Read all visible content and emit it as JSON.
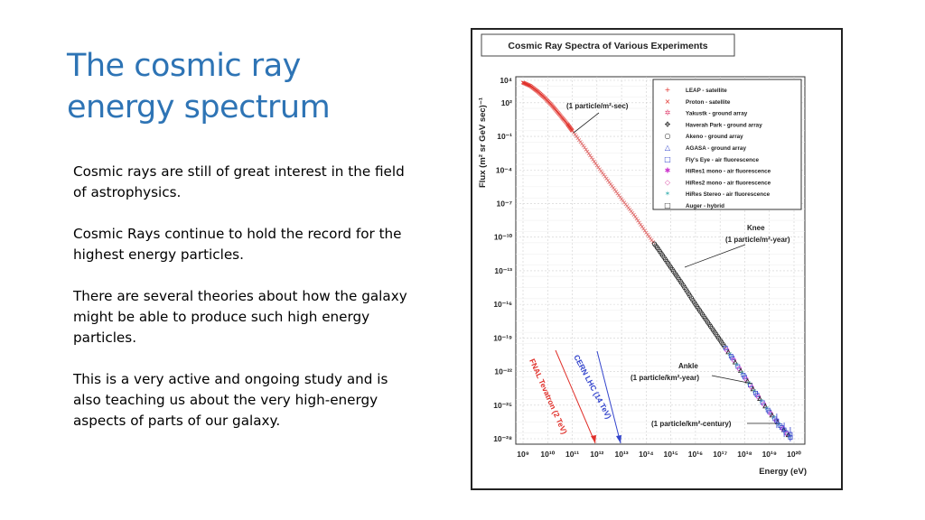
{
  "slide": {
    "title_line1": "The cosmic ray",
    "title_line2": "energy spectrum",
    "paragraphs": [
      "Cosmic rays are still of great interest in the field of astrophysics.",
      "Cosmic Rays continue to hold the record for the highest energy particles.",
      "There are several theories about how the galaxy might be able to produce such high energy particles.",
      "This is a very active and ongoing study and is also teaching us about the very high-energy aspects of parts of our galaxy."
    ]
  },
  "chart_data": {
    "type": "scatter",
    "title": "Cosmic Ray Spectra of Various Experiments",
    "xlabel": "Energy (eV)",
    "ylabel": "Flux (m² sr GeV sec)⁻¹",
    "xscale": "log",
    "yscale": "log",
    "xlim_exp": [
      9,
      20
    ],
    "ylim_exp": [
      -28,
      4
    ],
    "x_ticks": [
      {
        "exp": 9,
        "label": "10⁹"
      },
      {
        "exp": 10,
        "label": "10¹⁰"
      },
      {
        "exp": 11,
        "label": "10¹¹"
      },
      {
        "exp": 12,
        "label": "10¹²"
      },
      {
        "exp": 13,
        "label": "10¹³"
      },
      {
        "exp": 14,
        "label": "10¹⁴"
      },
      {
        "exp": 15,
        "label": "10¹⁵"
      },
      {
        "exp": 16,
        "label": "10¹⁶"
      },
      {
        "exp": 17,
        "label": "10¹⁷"
      },
      {
        "exp": 18,
        "label": "10¹⁸"
      },
      {
        "exp": 19,
        "label": "10¹⁹"
      },
      {
        "exp": 20,
        "label": "10²⁰"
      }
    ],
    "y_ticks": [
      {
        "exp": 4,
        "label": "10⁴"
      },
      {
        "exp": 2,
        "label": "10²"
      },
      {
        "exp": -1,
        "label": "10⁻¹"
      },
      {
        "exp": -4,
        "label": "10⁻⁴"
      },
      {
        "exp": -7,
        "label": "10⁻⁷"
      },
      {
        "exp": -10,
        "label": "10⁻¹⁰"
      },
      {
        "exp": -13,
        "label": "10⁻¹³"
      },
      {
        "exp": -16,
        "label": "10⁻¹⁶"
      },
      {
        "exp": -19,
        "label": "10⁻¹⁹"
      },
      {
        "exp": -22,
        "label": "10⁻²²"
      },
      {
        "exp": -25,
        "label": "10⁻²⁵"
      },
      {
        "exp": -28,
        "label": "10⁻²⁸"
      }
    ],
    "legend": [
      {
        "label": "LEAP - satellite",
        "marker": "+",
        "color": "#e0302a"
      },
      {
        "label": "Proton - satellite",
        "marker": "×",
        "color": "#e0302a"
      },
      {
        "label": "Yakustk - ground array",
        "marker": "✲",
        "color": "#e04070"
      },
      {
        "label": "Haverah Park - ground array",
        "marker": "✥",
        "color": "#333333"
      },
      {
        "label": "Akeno - ground array",
        "marker": "○",
        "color": "#333333"
      },
      {
        "label": "AGASA - ground array",
        "marker": "△",
        "color": "#3344cc"
      },
      {
        "label": "Fly's Eye - air fluorescence",
        "marker": "□",
        "color": "#3344cc"
      },
      {
        "label": "HiRes1 mono - air fluorescence",
        "marker": "✱",
        "color": "#cc33cc"
      },
      {
        "label": "HiRes2 mono - air fluorescence",
        "marker": "◇",
        "color": "#dd55aa"
      },
      {
        "label": "HiRes Stereo - air fluorescence",
        "marker": "✶",
        "color": "#55bbbb"
      },
      {
        "label": "Auger - hybrid",
        "marker": "□",
        "color": "#333333"
      }
    ],
    "spectrum": [
      {
        "log_e": 9.0,
        "log_flux": 3.8
      },
      {
        "log_e": 9.3,
        "log_flux": 3.5
      },
      {
        "log_e": 9.6,
        "log_flux": 3.0
      },
      {
        "log_e": 9.9,
        "log_flux": 2.4
      },
      {
        "log_e": 10.2,
        "log_flux": 1.7
      },
      {
        "log_e": 10.5,
        "log_flux": 0.9
      },
      {
        "log_e": 10.8,
        "log_flux": 0.1
      },
      {
        "log_e": 11.0,
        "log_flux": -0.5
      },
      {
        "log_e": 11.5,
        "log_flux": -2.0
      },
      {
        "log_e": 12.0,
        "log_flux": -3.6
      },
      {
        "log_e": 12.5,
        "log_flux": -5.1
      },
      {
        "log_e": 13.0,
        "log_flux": -6.6
      },
      {
        "log_e": 13.5,
        "log_flux": -8.0
      },
      {
        "log_e": 14.0,
        "log_flux": -9.6
      },
      {
        "log_e": 14.5,
        "log_flux": -11.1
      },
      {
        "log_e": 15.0,
        "log_flux": -12.7
      },
      {
        "log_e": 15.5,
        "log_flux": -14.3
      },
      {
        "log_e": 16.0,
        "log_flux": -16.0
      },
      {
        "log_e": 16.5,
        "log_flux": -17.6
      },
      {
        "log_e": 17.0,
        "log_flux": -19.2
      },
      {
        "log_e": 17.5,
        "log_flux": -20.8
      },
      {
        "log_e": 18.0,
        "log_flux": -22.5
      },
      {
        "log_e": 18.5,
        "log_flux": -24.1
      },
      {
        "log_e": 19.0,
        "log_flux": -25.6
      },
      {
        "log_e": 19.5,
        "log_flux": -27.0
      },
      {
        "log_e": 19.9,
        "log_flux": -28.0
      }
    ],
    "annotations": {
      "one_per_m2_sec": "(1 particle/m²-sec)",
      "knee": "Knee",
      "one_per_m2_year": "(1 particle/m²-year)",
      "ankle": "Ankle",
      "one_per_km2_year": "(1 particle/km²-year)",
      "one_per_km2_century": "(1 particle/km²-century)",
      "fnal": "FNAL Tevatron (2 TeV)",
      "lhc": "CERN LHC (14 TeV)"
    }
  }
}
